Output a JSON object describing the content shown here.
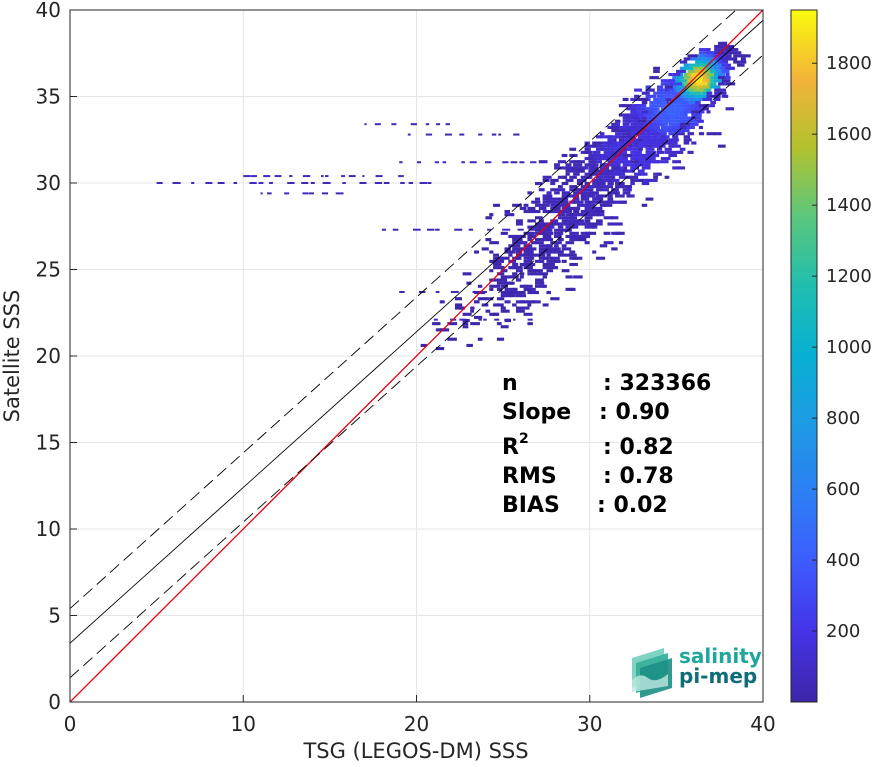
{
  "chart_data": {
    "type": "heatmap",
    "title": "",
    "xlabel": "TSG (LEGOS-DM) SSS",
    "ylabel": "Satellite SSS",
    "xlim": [
      0,
      40
    ],
    "ylim": [
      0,
      40
    ],
    "x_ticks": [
      0,
      10,
      20,
      30,
      40
    ],
    "y_ticks": [
      0,
      5,
      10,
      15,
      20,
      25,
      30,
      35,
      40
    ],
    "grid": true,
    "colorbar": {
      "colormap": "parula",
      "range": [
        0,
        1950
      ],
      "ticks": [
        200,
        400,
        600,
        800,
        1000,
        1200,
        1400,
        1600,
        1800
      ]
    },
    "lines": [
      {
        "name": "1:1",
        "style": "solid",
        "color": "#e8000b",
        "intercept": 0,
        "slope": 1
      },
      {
        "name": "regression fit",
        "style": "solid",
        "color": "#000000",
        "intercept": 3.4,
        "slope": 0.9
      },
      {
        "name": "fit + envelope",
        "style": "dashed",
        "color": "#000000",
        "intercept": 5.4,
        "slope": 0.9
      },
      {
        "name": "fit - envelope",
        "style": "dashed",
        "color": "#000000",
        "intercept": 1.4,
        "slope": 0.9
      }
    ],
    "density_clusters": [
      {
        "x": 36.2,
        "y": 36.0,
        "sx": 0.8,
        "sy": 0.8,
        "weight": 1.0,
        "peak": 1900
      },
      {
        "x": 34.6,
        "y": 34.3,
        "sx": 1.5,
        "sy": 1.4,
        "weight": 0.55,
        "peak": 420
      },
      {
        "x": 32.5,
        "y": 32.0,
        "sx": 2.0,
        "sy": 1.8,
        "weight": 0.4,
        "peak": 180
      },
      {
        "x": 29.5,
        "y": 29.0,
        "sx": 2.3,
        "sy": 2.3,
        "weight": 0.3,
        "peak": 60
      },
      {
        "x": 26.5,
        "y": 25.5,
        "sx": 2.2,
        "sy": 2.2,
        "weight": 0.2,
        "peak": 25
      }
    ],
    "outlier_rows": [
      {
        "y": 30.0,
        "x_from": 5.0,
        "x_to": 21.0
      },
      {
        "y": 29.4,
        "x_from": 11.0,
        "x_to": 16.0
      },
      {
        "y": 30.4,
        "x_from": 10.0,
        "x_to": 19.5
      },
      {
        "y": 33.4,
        "x_from": 17.0,
        "x_to": 22.0
      },
      {
        "y": 32.8,
        "x_from": 19.5,
        "x_to": 26.0
      },
      {
        "y": 31.2,
        "x_from": 19.0,
        "x_to": 27.0
      },
      {
        "y": 27.3,
        "x_from": 18.0,
        "x_to": 27.0
      },
      {
        "y": 23.7,
        "x_from": 19.0,
        "x_to": 24.0
      },
      {
        "y": 22.1,
        "x_from": 21.0,
        "x_to": 26.5
      }
    ],
    "statistics": [
      {
        "label": "n",
        "value": ": 323366"
      },
      {
        "label": "Slope",
        "value": ": 0.90"
      },
      {
        "label": "R2",
        "value": ": 0.82"
      },
      {
        "label": "RMS",
        "value": ": 0.78"
      },
      {
        "label": "BIAS",
        "value": ": 0.02"
      }
    ]
  },
  "logo": {
    "line1": "salinity",
    "line2": "pi-mep",
    "color_line1": "#1fa79a",
    "color_line2": "#0f6d77"
  }
}
